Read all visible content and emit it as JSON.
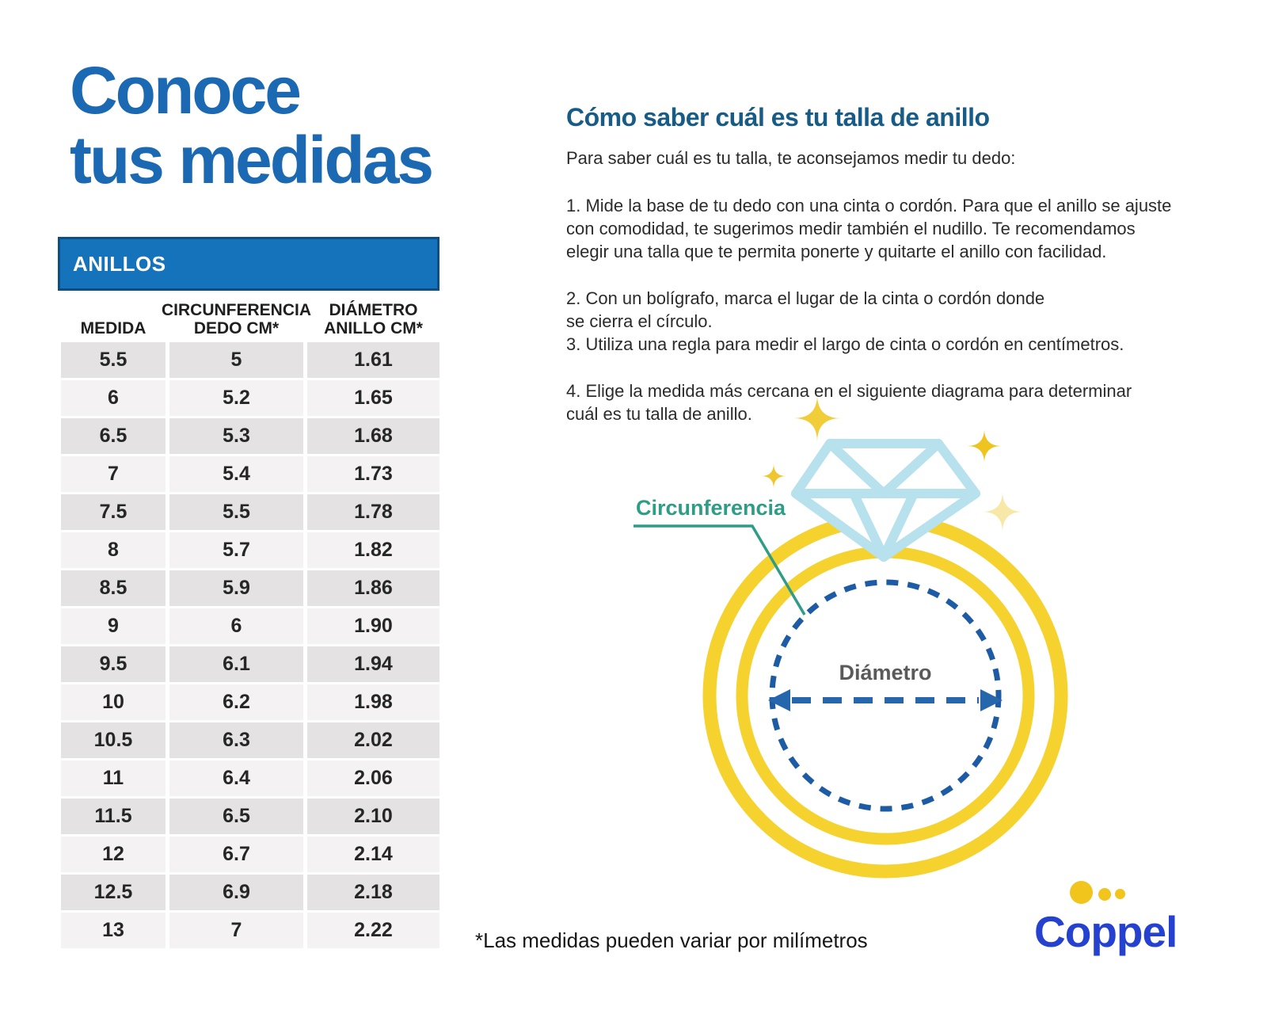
{
  "title": {
    "line1": "Conoce",
    "line2": "tus medidas",
    "color": "#1a69b2"
  },
  "table": {
    "header": "ANILLOS",
    "header_bar_color": "#1473ba",
    "columns": [
      "MEDIDA",
      "CIRCUNFERENCIA\nDEDO CM*",
      "DIÁMETRO\nANILLO CM*"
    ],
    "rows": [
      [
        "5.5",
        "5",
        "1.61"
      ],
      [
        "6",
        "5.2",
        "1.65"
      ],
      [
        "6.5",
        "5.3",
        "1.68"
      ],
      [
        "7",
        "5.4",
        "1.73"
      ],
      [
        "7.5",
        "5.5",
        "1.78"
      ],
      [
        "8",
        "5.7",
        "1.82"
      ],
      [
        "8.5",
        "5.9",
        "1.86"
      ],
      [
        "9",
        "6",
        "1.90"
      ],
      [
        "9.5",
        "6.1",
        "1.94"
      ],
      [
        "10",
        "6.2",
        "1.98"
      ],
      [
        "10.5",
        "6.3",
        "2.02"
      ],
      [
        "11",
        "6.4",
        "2.06"
      ],
      [
        "11.5",
        "6.5",
        "2.10"
      ],
      [
        "12",
        "6.7",
        "2.14"
      ],
      [
        "12.5",
        "6.9",
        "2.18"
      ],
      [
        "13",
        "7",
        "2.22"
      ]
    ],
    "row_color_dark": "#e4e2e2",
    "row_color_light": "#f4f2f2"
  },
  "instructions": {
    "heading": "Cómo saber cuál es tu talla de anillo",
    "heading_color": "#175b87",
    "intro": "Para saber cuál es tu talla, te aconsejamos medir tu dedo:",
    "steps": [
      "1. Mide la base de tu dedo con una cinta o cordón. Para que el anillo se ajuste\ncon comodidad, te sugerimos medir también el nudillo. Te recomendamos\nelegir una talla que te permita ponerte y quitarte el anillo con facilidad.",
      "2. Con un bolígrafo, marca el lugar de la cinta o cordón donde\nse cierra el círculo.",
      "3. Utiliza una regla para medir el largo de cinta o cordón en centímetros.",
      "4. Elige la medida más cercana en el siguiente diagrama para determinar\ncuál es tu talla de anillo."
    ]
  },
  "diagram": {
    "circumference_label": "Circunferencia",
    "diameter_label": "Diámetro",
    "colors": {
      "ring_yellow": "#f5d22e",
      "diamond_blue": "#b7e1ec",
      "dash_blue": "#1d5ca5",
      "teal": "#2f9c85",
      "star_yellow": "#f2c937",
      "star_pale": "#f8e8a8",
      "diameter_text": "#5a5a5a"
    }
  },
  "footnote": "*Las medidas pueden variar por milímetros",
  "logo": {
    "text": "Coppel",
    "text_color": "#2441cf",
    "dot_color": "#f2c51d"
  }
}
